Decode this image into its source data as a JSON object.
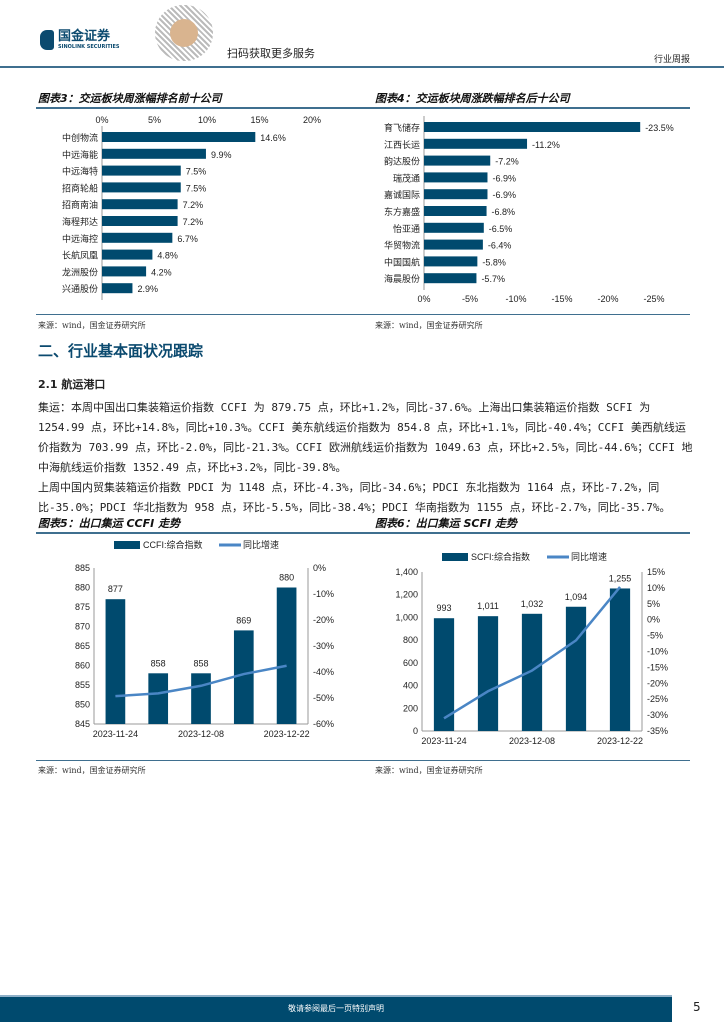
{
  "header": {
    "logo_cn": "国金证券",
    "logo_en": "SINOLINK SECURITIES",
    "qr_text": "扫码获取更多服务",
    "report_type": "行业周报"
  },
  "fig3": {
    "title": "图表3：交运板块周涨幅排名前十公司",
    "source": "来源：wind，国金证券研究所"
  },
  "fig4": {
    "title": "图表4：交运板块周涨跌幅排名后十公司",
    "source": "来源：wind，国金证券研究所"
  },
  "section": {
    "heading": "二、行业基本面状况跟踪",
    "sub": "2.1 航运港口",
    "paragraphs": [
      "集运：本周中国出口集装箱运价指数 CCFI 为 879.75 点，环比+1.2%，同比-37.6%。上海出口集装箱运价指数 SCFI 为 1254.99 点，环比+14.8%，同比+10.3%。CCFI 美东航线运价指数为 854.8 点，环比+1.1%，同比-40.4%；CCFI 美西航线运价指数为 703.99 点，环比-2.0%，同比-21.3%。CCFI 欧洲航线运价指数为 1049.63 点，环比+2.5%，同比-44.6%；CCFI 地中海航线运价指数 1352.49 点，环比+3.2%，同比-39.8%。",
      "上周中国内贸集装箱运价指数 PDCI 为 1148 点，环比-4.3%，同比-34.6%；PDCI 东北指数为 1164 点，环比-7.2%，同比-35.0%；PDCI 华北指数为 958 点，环比-5.5%，同比-38.4%；PDCI 华南指数为 1155 点，环比-2.7%，同比-35.7%。"
    ]
  },
  "fig5": {
    "title": "图表5：出口集运 CCFI 走势",
    "source": "来源：wind，国金证券研究所"
  },
  "fig6": {
    "title": "图表6：出口集运 SCFI 走势",
    "source": "来源：wind，国金证券研究所"
  },
  "footer": {
    "notice": "敬请参阅最后一页特别声明",
    "page": "5"
  },
  "colors": {
    "bar": "#004a6e",
    "line": "#4a86c5",
    "rule": "#3f6f8f"
  },
  "chart_data": [
    {
      "type": "bar",
      "orientation": "horizontal",
      "categories": [
        "中创物流",
        "中远海能",
        "中远海特",
        "招商轮船",
        "招商南油",
        "海程邦达",
        "中远海控",
        "长航凤凰",
        "龙洲股份",
        "兴通股份"
      ],
      "values": [
        14.6,
        9.9,
        7.5,
        7.5,
        7.2,
        7.2,
        6.7,
        4.8,
        4.2,
        2.9
      ],
      "labels": [
        "14.6%",
        "9.9%",
        "7.5%",
        "7.5%",
        "7.2%",
        "7.2%",
        "6.7%",
        "4.8%",
        "4.2%",
        "2.9%"
      ],
      "xticks": [
        "0%",
        "5%",
        "10%",
        "15%",
        "20%"
      ],
      "xlim": [
        0,
        20
      ]
    },
    {
      "type": "bar",
      "orientation": "horizontal",
      "categories": [
        "育飞储存",
        "江西长运",
        "韵达股份",
        "瑞茂通",
        "嘉诚国际",
        "东方嘉盛",
        "怡亚通",
        "华贸物流",
        "中国国航",
        "海晨股份"
      ],
      "values": [
        -23.5,
        -11.2,
        -7.2,
        -6.9,
        -6.9,
        -6.8,
        -6.5,
        -6.4,
        -5.8,
        -5.7
      ],
      "labels": [
        "-23.5%",
        "-11.2%",
        "-7.2%",
        "-6.9%",
        "-6.9%",
        "-6.8%",
        "-6.5%",
        "-6.4%",
        "-5.8%",
        "-5.7%"
      ],
      "xticks": [
        "0%",
        "-5%",
        "-10%",
        "-15%",
        "-20%",
        "-25%"
      ],
      "xlim": [
        0,
        -25
      ]
    },
    {
      "type": "bar",
      "series": [
        {
          "name": "CCFI:综合指数",
          "values": [
            877,
            858,
            858,
            869,
            880
          ],
          "labels": [
            "877",
            "858",
            "858",
            "869",
            "880"
          ]
        },
        {
          "name": "同比增速",
          "type": "line",
          "values": [
            -49.3,
            -48.2,
            -45.3,
            -40.8,
            -37.6
          ]
        }
      ],
      "xticks": [
        "2023-11-24",
        "2023-12-08",
        "2023-12-22"
      ],
      "yticks": [
        "885",
        "880",
        "875",
        "870",
        "865",
        "860",
        "855",
        "850",
        "845"
      ],
      "y2ticks": [
        "0%",
        "-10%",
        "-20%",
        "-30%",
        "-40%",
        "-50%",
        "-60%"
      ],
      "ylim": [
        845,
        885
      ],
      "y2lim": [
        -60,
        0
      ]
    },
    {
      "type": "bar",
      "series": [
        {
          "name": "SCFI:综合指数",
          "values": [
            993,
            1011,
            1032,
            1094,
            1255
          ],
          "labels": [
            "993",
            "1,011",
            "1,032",
            "1,094",
            "1,255"
          ]
        },
        {
          "name": "同比增速",
          "type": "line",
          "values": [
            -31,
            -22.5,
            -16,
            -6.5,
            10.3
          ]
        }
      ],
      "xticks": [
        "2023-11-24",
        "2023-12-08",
        "2023-12-22"
      ],
      "yticks": [
        "1,400",
        "1,200",
        "1,000",
        "800",
        "600",
        "400",
        "200",
        "0"
      ],
      "y2ticks": [
        "15%",
        "10%",
        "5%",
        "0%",
        "-5%",
        "-10%",
        "-15%",
        "-20%",
        "-25%",
        "-30%",
        "-35%"
      ],
      "ylim": [
        0,
        1400
      ],
      "y2lim": [
        -35,
        15
      ]
    }
  ]
}
